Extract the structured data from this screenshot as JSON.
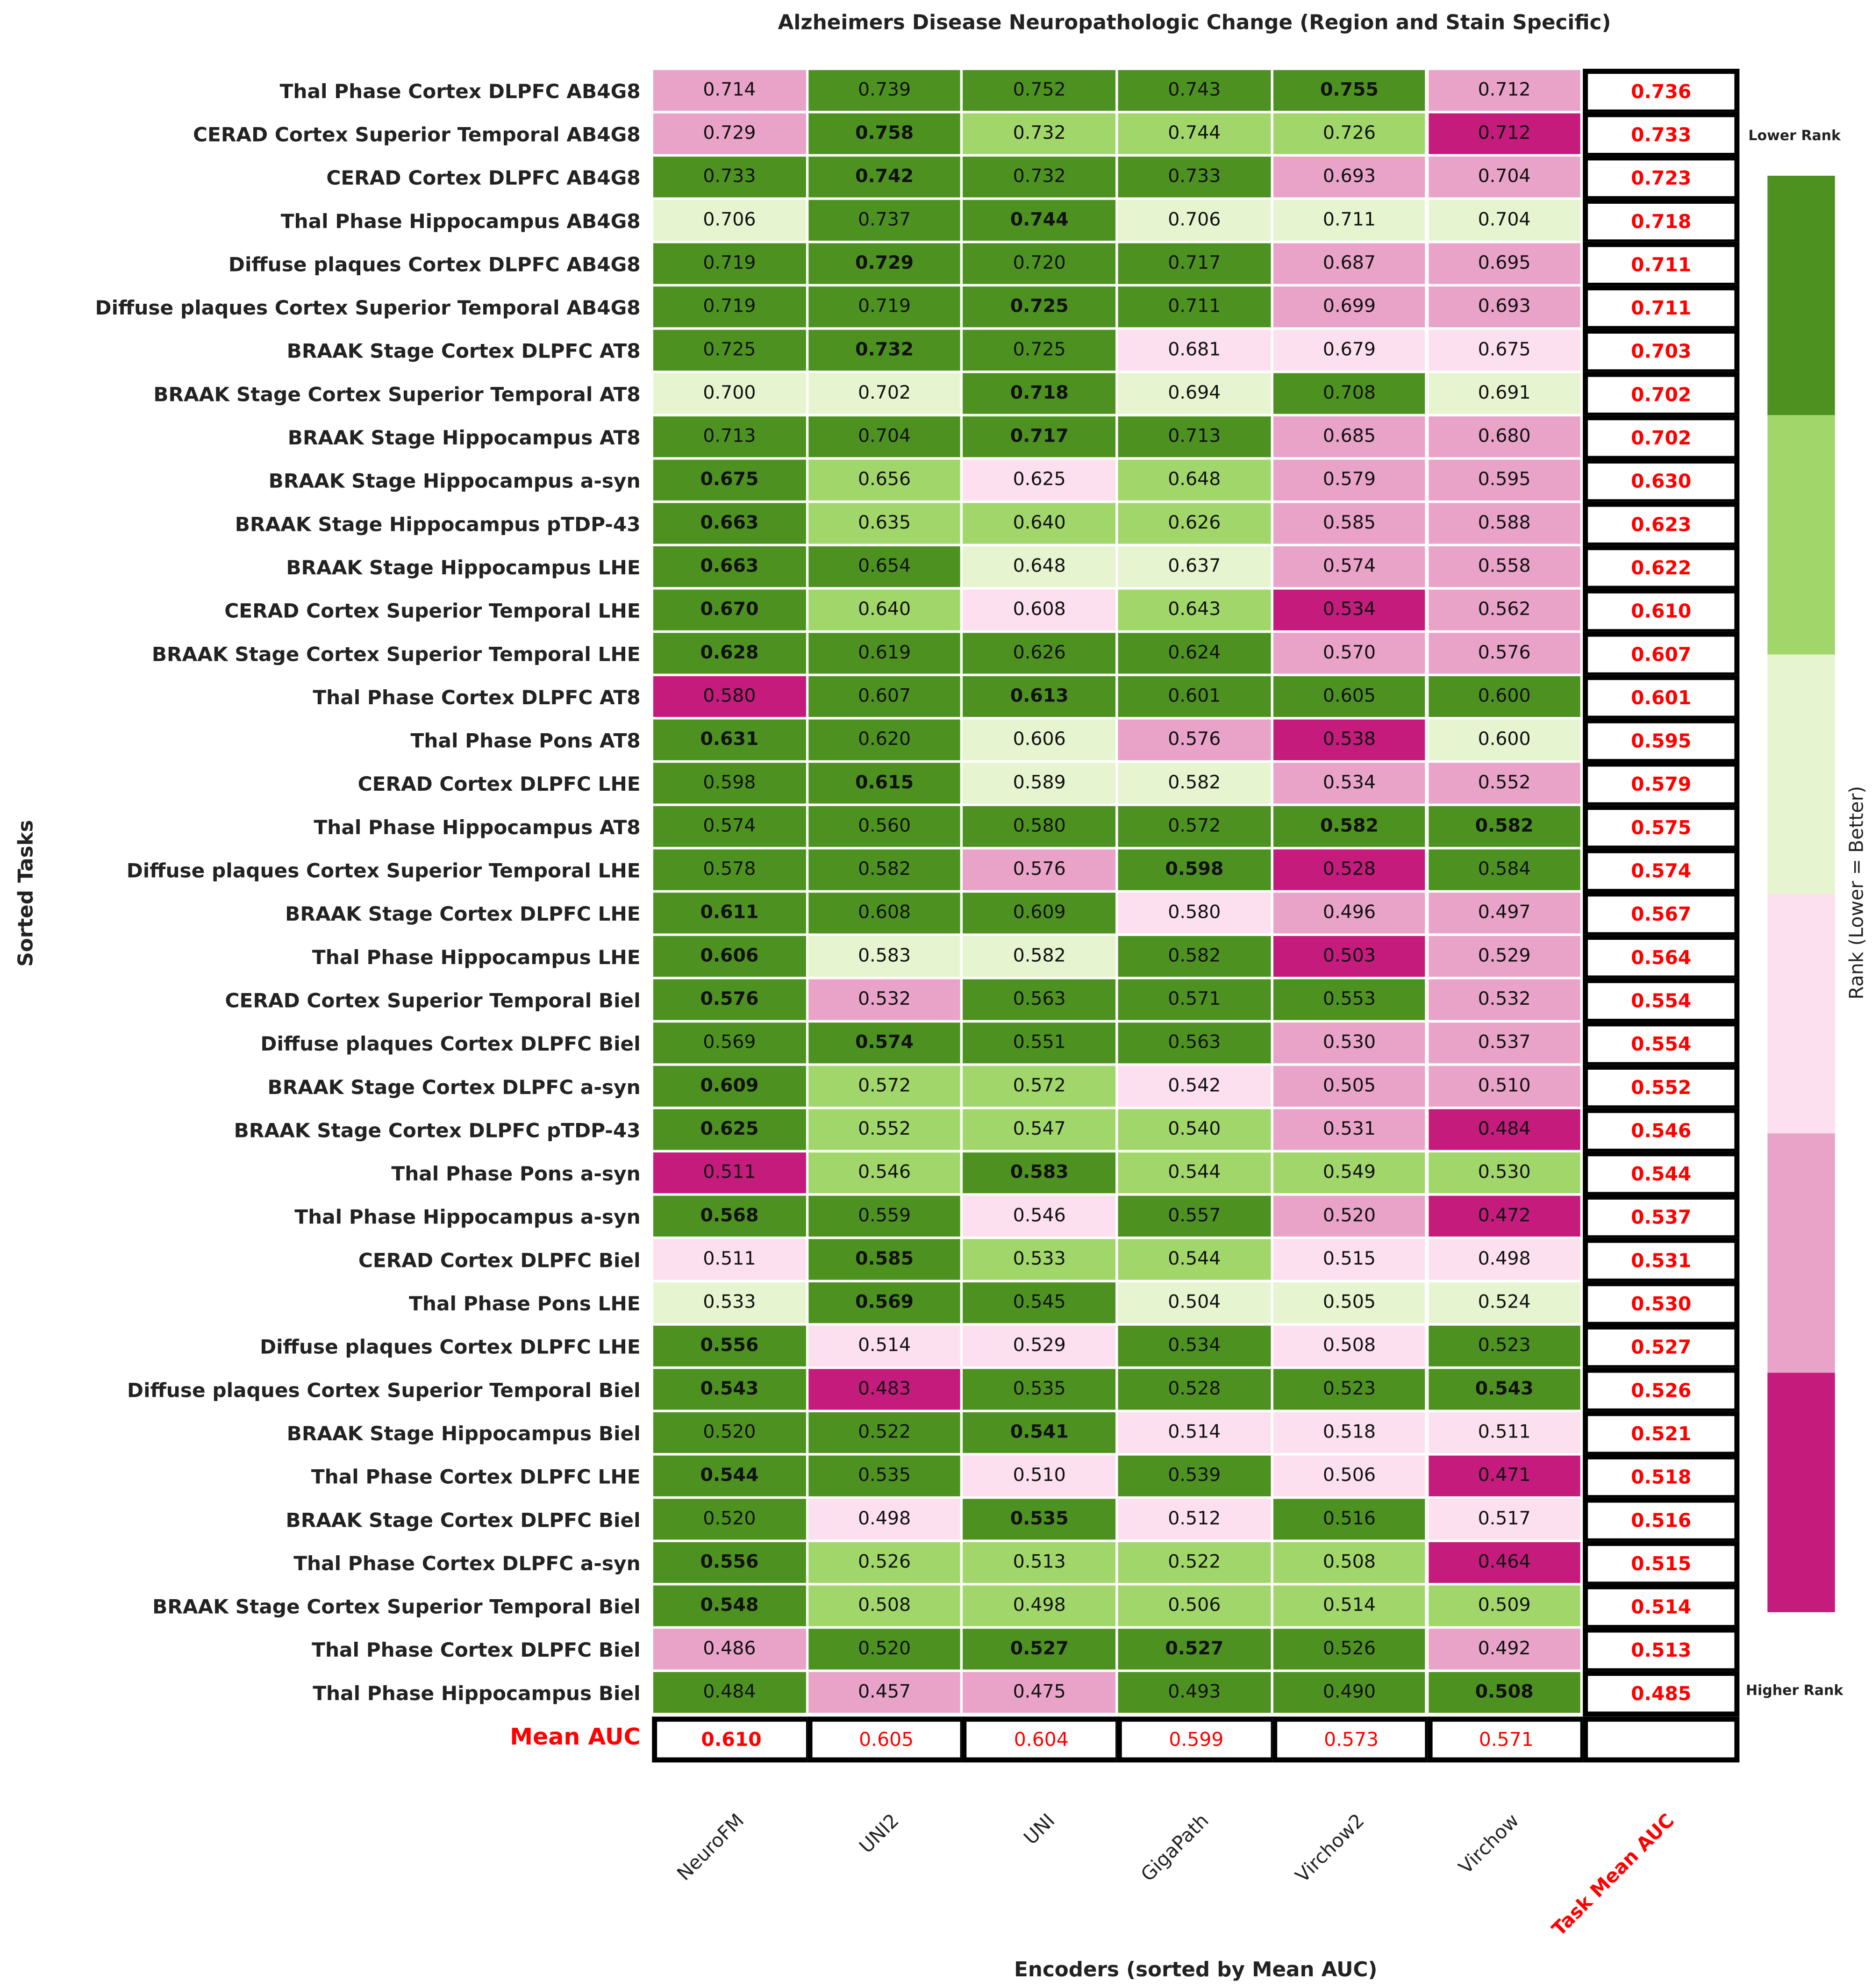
{
  "chart_data": {
    "type": "heatmap",
    "title": "Alzheimers Disease Neuropathologic Change (Region and Stain Specific)",
    "xlabel": "Encoders (sorted by Mean AUC)",
    "ylabel": "Sorted Tasks",
    "columns": [
      "NeuroFM",
      "UNI2",
      "UNI",
      "GigaPath",
      "Virchow2",
      "Virchow"
    ],
    "task_mean_label": "Task Mean AUC",
    "mean_row_label": "Mean AUC",
    "colorbar": {
      "label": "Rank (Lower = Better)",
      "top_label": "Lower Rank",
      "bottom_label": "Higher Rank",
      "colors": [
        "#4d9221",
        "#a1d76a",
        "#e6f5d0",
        "#fde0ef",
        "#e9a3c9",
        "#c51b7d"
      ]
    },
    "rows": [
      {
        "task": "Thal Phase Cortex DLPFC AB4G8",
        "values": [
          0.714,
          0.739,
          0.752,
          0.743,
          0.755,
          0.712
        ],
        "ranks": [
          5,
          1,
          1,
          1,
          1,
          5
        ],
        "mean": 0.736
      },
      {
        "task": "CERAD Cortex Superior Temporal AB4G8",
        "values": [
          0.729,
          0.758,
          0.732,
          0.744,
          0.726,
          0.712
        ],
        "ranks": [
          5,
          1,
          2,
          2,
          2,
          6
        ],
        "mean": 0.733
      },
      {
        "task": "CERAD Cortex DLPFC AB4G8",
        "values": [
          0.733,
          0.742,
          0.732,
          0.733,
          0.693,
          0.704
        ],
        "ranks": [
          1,
          1,
          1,
          1,
          5,
          5
        ],
        "mean": 0.723
      },
      {
        "task": "Thal Phase Hippocampus AB4G8",
        "values": [
          0.706,
          0.737,
          0.744,
          0.706,
          0.711,
          0.704
        ],
        "ranks": [
          3,
          1,
          1,
          3,
          3,
          3
        ],
        "mean": 0.718
      },
      {
        "task": "Diffuse plaques Cortex DLPFC AB4G8",
        "values": [
          0.719,
          0.729,
          0.72,
          0.717,
          0.687,
          0.695
        ],
        "ranks": [
          1,
          1,
          1,
          1,
          5,
          5
        ],
        "mean": 0.711
      },
      {
        "task": "Diffuse plaques Cortex Superior Temporal AB4G8",
        "values": [
          0.719,
          0.719,
          0.725,
          0.711,
          0.699,
          0.693
        ],
        "ranks": [
          1,
          1,
          1,
          1,
          5,
          5
        ],
        "mean": 0.711
      },
      {
        "task": "BRAAK Stage Cortex DLPFC AT8",
        "values": [
          0.725,
          0.732,
          0.725,
          0.681,
          0.679,
          0.675
        ],
        "ranks": [
          1,
          1,
          1,
          4,
          4,
          4
        ],
        "mean": 0.703
      },
      {
        "task": "BRAAK Stage Cortex Superior Temporal AT8",
        "values": [
          0.7,
          0.702,
          0.718,
          0.694,
          0.708,
          0.691
        ],
        "ranks": [
          3,
          3,
          1,
          3,
          1,
          3
        ],
        "mean": 0.702
      },
      {
        "task": "BRAAK Stage Hippocampus AT8",
        "values": [
          0.713,
          0.704,
          0.717,
          0.713,
          0.685,
          0.68
        ],
        "ranks": [
          1,
          1,
          1,
          1,
          5,
          5
        ],
        "mean": 0.702
      },
      {
        "task": "BRAAK Stage Hippocampus a-syn",
        "values": [
          0.675,
          0.656,
          0.625,
          0.648,
          0.579,
          0.595
        ],
        "ranks": [
          1,
          2,
          4,
          2,
          5,
          5
        ],
        "mean": 0.63
      },
      {
        "task": "BRAAK Stage Hippocampus pTDP-43",
        "values": [
          0.663,
          0.635,
          0.64,
          0.626,
          0.585,
          0.588
        ],
        "ranks": [
          1,
          2,
          2,
          2,
          5,
          5
        ],
        "mean": 0.623
      },
      {
        "task": "BRAAK Stage Hippocampus LHE",
        "values": [
          0.663,
          0.654,
          0.648,
          0.637,
          0.574,
          0.558
        ],
        "ranks": [
          1,
          1,
          3,
          3,
          5,
          5
        ],
        "mean": 0.622
      },
      {
        "task": "CERAD Cortex Superior Temporal LHE",
        "values": [
          0.67,
          0.64,
          0.608,
          0.643,
          0.534,
          0.562
        ],
        "ranks": [
          1,
          2,
          4,
          2,
          6,
          5
        ],
        "mean": 0.61
      },
      {
        "task": "BRAAK Stage Cortex Superior Temporal LHE",
        "values": [
          0.628,
          0.619,
          0.626,
          0.624,
          0.57,
          0.576
        ],
        "ranks": [
          1,
          1,
          1,
          1,
          5,
          5
        ],
        "mean": 0.607
      },
      {
        "task": "Thal Phase Cortex DLPFC AT8",
        "values": [
          0.58,
          0.607,
          0.613,
          0.601,
          0.605,
          0.6
        ],
        "ranks": [
          6,
          1,
          1,
          1,
          1,
          1
        ],
        "mean": 0.601
      },
      {
        "task": "Thal Phase Pons AT8",
        "values": [
          0.631,
          0.62,
          0.606,
          0.576,
          0.538,
          0.6
        ],
        "ranks": [
          1,
          1,
          3,
          5,
          6,
          3
        ],
        "mean": 0.595
      },
      {
        "task": "CERAD Cortex DLPFC LHE",
        "values": [
          0.598,
          0.615,
          0.589,
          0.582,
          0.534,
          0.552
        ],
        "ranks": [
          1,
          1,
          3,
          3,
          5,
          5
        ],
        "mean": 0.579
      },
      {
        "task": "Thal Phase Hippocampus AT8",
        "values": [
          0.574,
          0.56,
          0.58,
          0.572,
          0.582,
          0.582
        ],
        "ranks": [
          1,
          1,
          1,
          1,
          1,
          1
        ],
        "mean": 0.575
      },
      {
        "task": "Diffuse plaques Cortex Superior Temporal LHE",
        "values": [
          0.578,
          0.582,
          0.576,
          0.598,
          0.528,
          0.584
        ],
        "ranks": [
          1,
          1,
          5,
          1,
          6,
          1
        ],
        "mean": 0.574
      },
      {
        "task": "BRAAK Stage Cortex DLPFC LHE",
        "values": [
          0.611,
          0.608,
          0.609,
          0.58,
          0.496,
          0.497
        ],
        "ranks": [
          1,
          1,
          1,
          4,
          5,
          5
        ],
        "mean": 0.567
      },
      {
        "task": "Thal Phase Hippocampus LHE",
        "values": [
          0.606,
          0.583,
          0.582,
          0.582,
          0.503,
          0.529
        ],
        "ranks": [
          1,
          3,
          3,
          1,
          6,
          5
        ],
        "mean": 0.564
      },
      {
        "task": "CERAD Cortex Superior Temporal Biel",
        "values": [
          0.576,
          0.532,
          0.563,
          0.571,
          0.553,
          0.532
        ],
        "ranks": [
          1,
          5,
          1,
          1,
          1,
          5
        ],
        "mean": 0.554
      },
      {
        "task": "Diffuse plaques Cortex DLPFC Biel",
        "values": [
          0.569,
          0.574,
          0.551,
          0.563,
          0.53,
          0.537
        ],
        "ranks": [
          1,
          1,
          1,
          1,
          5,
          5
        ],
        "mean": 0.554
      },
      {
        "task": "BRAAK Stage Cortex DLPFC a-syn",
        "values": [
          0.609,
          0.572,
          0.572,
          0.542,
          0.505,
          0.51
        ],
        "ranks": [
          1,
          2,
          2,
          4,
          5,
          5
        ],
        "mean": 0.552
      },
      {
        "task": "BRAAK Stage Cortex DLPFC pTDP-43",
        "values": [
          0.625,
          0.552,
          0.547,
          0.54,
          0.531,
          0.484
        ],
        "ranks": [
          1,
          2,
          2,
          2,
          5,
          6
        ],
        "mean": 0.546
      },
      {
        "task": "Thal Phase Pons a-syn",
        "values": [
          0.511,
          0.546,
          0.583,
          0.544,
          0.549,
          0.53
        ],
        "ranks": [
          6,
          2,
          1,
          2,
          2,
          2
        ],
        "mean": 0.544
      },
      {
        "task": "Thal Phase Hippocampus a-syn",
        "values": [
          0.568,
          0.559,
          0.546,
          0.557,
          0.52,
          0.472
        ],
        "ranks": [
          1,
          1,
          4,
          1,
          5,
          6
        ],
        "mean": 0.537
      },
      {
        "task": "CERAD Cortex DLPFC Biel",
        "values": [
          0.511,
          0.585,
          0.533,
          0.544,
          0.515,
          0.498
        ],
        "ranks": [
          4,
          1,
          2,
          2,
          4,
          4
        ],
        "mean": 0.531
      },
      {
        "task": "Thal Phase Pons LHE",
        "values": [
          0.533,
          0.569,
          0.545,
          0.504,
          0.505,
          0.524
        ],
        "ranks": [
          3,
          1,
          1,
          3,
          3,
          3
        ],
        "mean": 0.53
      },
      {
        "task": "Diffuse plaques Cortex DLPFC LHE",
        "values": [
          0.556,
          0.514,
          0.529,
          0.534,
          0.508,
          0.523
        ],
        "ranks": [
          1,
          4,
          4,
          1,
          4,
          1
        ],
        "mean": 0.527
      },
      {
        "task": "Diffuse plaques Cortex Superior Temporal Biel",
        "values": [
          0.543,
          0.483,
          0.535,
          0.528,
          0.523,
          0.543
        ],
        "ranks": [
          1,
          6,
          1,
          1,
          1,
          1
        ],
        "mean": 0.526
      },
      {
        "task": "BRAAK Stage Hippocampus Biel",
        "values": [
          0.52,
          0.522,
          0.541,
          0.514,
          0.518,
          0.511
        ],
        "ranks": [
          1,
          1,
          1,
          4,
          4,
          4
        ],
        "mean": 0.521
      },
      {
        "task": "Thal Phase Cortex DLPFC LHE",
        "values": [
          0.544,
          0.535,
          0.51,
          0.539,
          0.506,
          0.471
        ],
        "ranks": [
          1,
          1,
          4,
          1,
          4,
          6
        ],
        "mean": 0.518
      },
      {
        "task": "BRAAK Stage Cortex DLPFC Biel",
        "values": [
          0.52,
          0.498,
          0.535,
          0.512,
          0.516,
          0.517
        ],
        "ranks": [
          1,
          4,
          1,
          4,
          1,
          4
        ],
        "mean": 0.516
      },
      {
        "task": "Thal Phase Cortex DLPFC a-syn",
        "values": [
          0.556,
          0.526,
          0.513,
          0.522,
          0.508,
          0.464
        ],
        "ranks": [
          1,
          2,
          2,
          2,
          2,
          6
        ],
        "mean": 0.515
      },
      {
        "task": "BRAAK Stage Cortex Superior Temporal Biel",
        "values": [
          0.548,
          0.508,
          0.498,
          0.506,
          0.514,
          0.509
        ],
        "ranks": [
          1,
          2,
          2,
          2,
          2,
          2
        ],
        "mean": 0.514
      },
      {
        "task": "Thal Phase Cortex DLPFC Biel",
        "values": [
          0.486,
          0.52,
          0.527,
          0.527,
          0.526,
          0.492
        ],
        "ranks": [
          5,
          1,
          1,
          1,
          1,
          5
        ],
        "mean": 0.513
      },
      {
        "task": "Thal Phase Hippocampus Biel",
        "values": [
          0.484,
          0.457,
          0.475,
          0.493,
          0.49,
          0.508
        ],
        "ranks": [
          1,
          5,
          5,
          1,
          1,
          1
        ],
        "mean": 0.485
      }
    ],
    "column_means": [
      0.61,
      0.605,
      0.604,
      0.599,
      0.573,
      0.571
    ]
  }
}
